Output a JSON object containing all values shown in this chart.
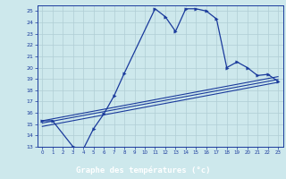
{
  "xlabel": "Graphe des températures (°c)",
  "xlim": [
    -0.5,
    23.5
  ],
  "ylim": [
    13,
    25.5
  ],
  "xticks": [
    0,
    1,
    2,
    3,
    4,
    5,
    6,
    7,
    8,
    9,
    10,
    11,
    12,
    13,
    14,
    15,
    16,
    17,
    18,
    19,
    20,
    21,
    22,
    23
  ],
  "yticks": [
    13,
    14,
    15,
    16,
    17,
    18,
    19,
    20,
    21,
    22,
    23,
    24,
    25
  ],
  "background_color": "#cde8ec",
  "grid_color": "#b0cdd4",
  "line_color": "#1a3a9c",
  "xlabel_bg": "#1a3a9c",
  "xlabel_fg": "#ffffff",
  "main_curve_x": [
    0,
    1,
    3,
    4,
    5,
    6,
    7,
    8,
    11,
    12,
    13,
    14,
    15,
    16,
    17,
    18,
    19,
    20,
    21,
    22,
    23
  ],
  "main_curve_y": [
    15.3,
    15.3,
    13.0,
    12.8,
    14.6,
    15.9,
    17.5,
    19.5,
    25.2,
    24.5,
    23.2,
    25.2,
    25.2,
    25.0,
    24.3,
    20.0,
    20.5,
    20.0,
    19.3,
    19.4,
    18.8
  ],
  "trend1_x": [
    0,
    23
  ],
  "trend1_y": [
    15.3,
    19.2
  ],
  "trend2_x": [
    0,
    23
  ],
  "trend2_y": [
    15.1,
    18.95
  ],
  "trend3_x": [
    0,
    23
  ],
  "trend3_y": [
    14.8,
    18.7
  ]
}
